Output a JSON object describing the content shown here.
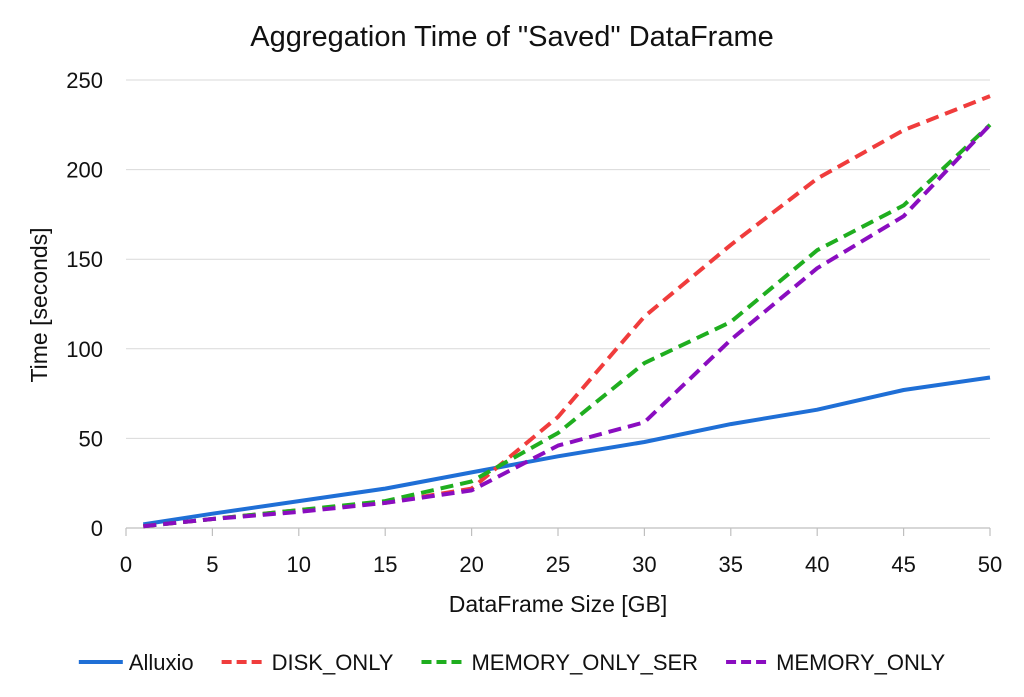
{
  "chart_data": {
    "type": "line",
    "title": "Aggregation Time of \"Saved\" DataFrame",
    "xlabel": "DataFrame Size [GB]",
    "ylabel": "Time [seconds]",
    "xlim": [
      0,
      50
    ],
    "ylim": [
      0,
      250
    ],
    "xticks": [
      0,
      5,
      10,
      15,
      20,
      25,
      30,
      35,
      40,
      45,
      50
    ],
    "yticks": [
      0,
      50,
      100,
      150,
      200,
      250
    ],
    "grid": "horizontal",
    "legend_position": "bottom",
    "x": [
      1,
      5,
      10,
      15,
      20,
      25,
      30,
      35,
      40,
      45,
      50
    ],
    "series": [
      {
        "name": "Alluxio",
        "color": "#1f6fd6",
        "dash": "solid",
        "values": [
          2,
          8,
          15,
          22,
          31,
          40,
          48,
          58,
          66,
          77,
          84
        ]
      },
      {
        "name": "DISK_ONLY",
        "color": "#f03c3c",
        "dash": "dashed",
        "values": [
          1,
          5,
          10,
          14,
          22,
          62,
          118,
          158,
          195,
          222,
          241
        ]
      },
      {
        "name": "MEMORY_ONLY_SER",
        "color": "#1fae1f",
        "dash": "dashed",
        "values": [
          1,
          5,
          10,
          15,
          26,
          53,
          92,
          115,
          155,
          180,
          225
        ]
      },
      {
        "name": "MEMORY_ONLY",
        "color": "#8a0dc0",
        "dash": "dashed",
        "values": [
          1,
          5,
          9,
          14,
          21,
          46,
          59,
          105,
          145,
          174,
          225
        ]
      }
    ]
  }
}
